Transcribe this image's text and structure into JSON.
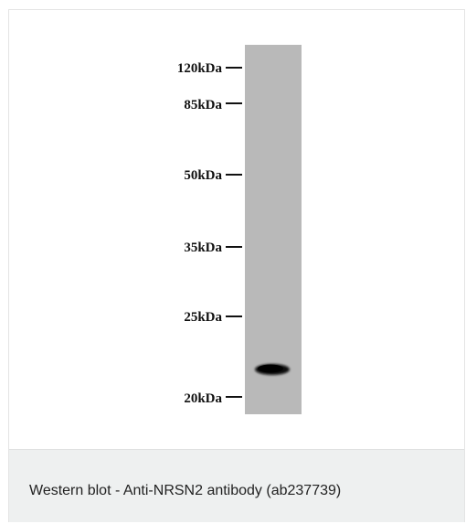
{
  "markers": [
    {
      "label": "120kDa"
    },
    {
      "label": "85kDa"
    },
    {
      "label": "50kDa"
    },
    {
      "label": "35kDa"
    },
    {
      "label": "25kDa"
    },
    {
      "label": "20kDa"
    }
  ],
  "band": {
    "approx_kda": 22,
    "intensity": "strong"
  },
  "colors": {
    "lane": "#b9b9b9",
    "band": "#0c0c0c",
    "caption_bg": "#eef0f0"
  },
  "caption": "Western blot - Anti-NRSN2 antibody (ab237739)"
}
